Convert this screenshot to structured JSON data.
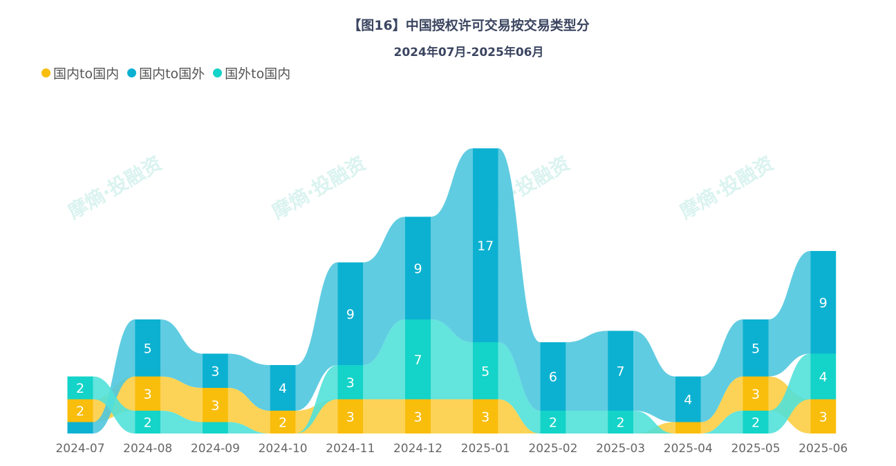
{
  "title": "【图16】中国授权许可交易按交易类型分",
  "subtitle": "2024年07月-2025年06月",
  "watermark": "摩熵·投融资",
  "chart_data": {
    "type": "ribbon",
    "title": "【图16】中国授权许可交易按交易类型分",
    "subtitle": "2024年07月-2025年06月",
    "legend_position": "top-left",
    "categories": [
      "2024-07",
      "2024-08",
      "2024-09",
      "2024-10",
      "2024-11",
      "2024-12",
      "2025-01",
      "2025-02",
      "2025-03",
      "2025-04",
      "2025-05",
      "2025-06"
    ],
    "series": [
      {
        "name": "国内to国内",
        "color": "#f9bd0c",
        "ribbon_color": "#fcce45",
        "values": [
          2,
          3,
          3,
          2,
          3,
          3,
          3,
          0,
          0,
          1,
          3,
          3
        ]
      },
      {
        "name": "国内to国外",
        "color": "#0cb1d1",
        "ribbon_color": "#4fc7de",
        "values": [
          1,
          5,
          3,
          4,
          9,
          9,
          17,
          6,
          7,
          4,
          5,
          9
        ]
      },
      {
        "name": "国外to国内",
        "color": "#14d3c8",
        "ribbon_color": "#52e1d9",
        "values": [
          2,
          2,
          1,
          0,
          3,
          7,
          5,
          2,
          2,
          0,
          2,
          4
        ]
      }
    ]
  }
}
